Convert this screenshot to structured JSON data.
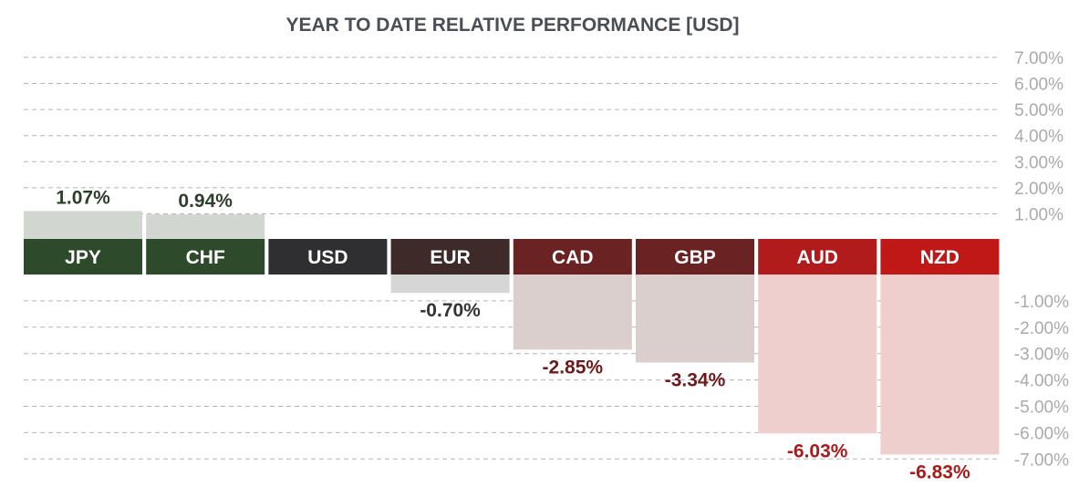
{
  "chart_data": {
    "type": "bar",
    "title": "YEAR TO DATE RELATIVE PERFORMANCE  [USD]",
    "categories": [
      "JPY",
      "CHF",
      "USD",
      "EUR",
      "CAD",
      "GBP",
      "AUD",
      "NZD"
    ],
    "values": [
      1.07,
      0.94,
      0.0,
      -0.7,
      -2.85,
      -3.34,
      -6.03,
      -6.83
    ],
    "value_labels": [
      "1.07%",
      "0.94%",
      "",
      "-0.70%",
      "-2.85%",
      "-3.34%",
      "-6.03%",
      "-6.83%"
    ],
    "ylim": [
      -7,
      7
    ],
    "positive_ticks": [
      "7.00%",
      "6.00%",
      "5.00%",
      "4.00%",
      "3.00%",
      "2.00%",
      "1.00%"
    ],
    "negative_ticks": [
      "-1.00%",
      "-2.00%",
      "-3.00%",
      "-4.00%",
      "-5.00%",
      "-6.00%",
      "-7.00%"
    ],
    "xlabel": "",
    "ylabel": "",
    "grid": true,
    "colors": {
      "category_fill": [
        "#2d4a2b",
        "#2d4a2b",
        "#2f2f31",
        "#3d2a29",
        "#6a2222",
        "#6a2222",
        "#b21b1b",
        "#c01717"
      ],
      "bar_fill": [
        "#d2d6d1",
        "#d2d6d1",
        "#d6d6d6",
        "#d6d6d6",
        "#dbcfce",
        "#dbcfce",
        "#efcfce",
        "#efcfce"
      ],
      "label_color": [
        "#2d3e2b",
        "#2d3e2b",
        "#333333",
        "#333333",
        "#6e1a1a",
        "#6e1a1a",
        "#a91b1b",
        "#a91b1b"
      ],
      "title": "#4a4f55",
      "tick": "#aaaaaa",
      "grid": "#b5b5b5"
    }
  }
}
